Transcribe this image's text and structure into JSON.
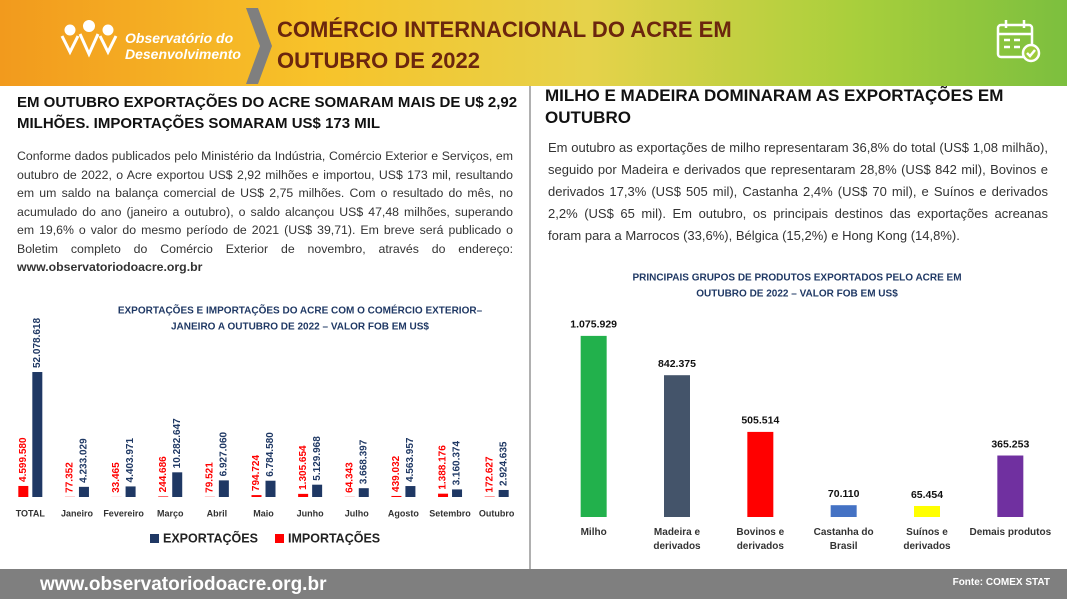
{
  "header": {
    "logo": [
      "Observatório do",
      "Desenvolvimento"
    ],
    "title": [
      "COMÉRCIO INTERNACIONAL DO ACRE EM",
      "OUTUBRO DE 2022"
    ]
  },
  "left": {
    "heading": "EM OUTUBRO EXPORTAÇÕES DO ACRE SOMARAM MAIS DE U$ 2,92 MILHÕES. IMPORTAÇÕES SOMARAM  US$ 173 MIL",
    "paragraph": "Conforme dados publicados pelo Ministério da Indústria, Comércio Exterior e Serviços, em outubro de 2022, o Acre exportou US$ 2,92 milhões e importou, US$ 173  mil, resultando em um saldo na balança comercial de US$ 2,75 milhões. Com o resultado do mês, no acumulado do ano (janeiro a outubro), o saldo alcançou US$ 47,48 milhões, superando em 19,6% o valor do mesmo período de 2021 (US$ 39,71).  Em breve será publicado o Boletim completo do Comércio Exterior de novembro, através do endereço: ",
    "link": "www.observatoriodoacre.org.br"
  },
  "right": {
    "heading": "MILHO E MADEIRA DOMINARAM AS EXPORTAÇÕES EM OUTUBRO",
    "paragraph": "Em outubro as exportações de milho representaram  36,8% do total (US$ 1,08 milhão), seguido por Madeira e derivados que representaram 28,8% (US$ 842 mil), Bovinos e derivados 17,3% (US$ 505 mil), Castanha 2,4% (US$ 70 mil),  e Suínos e derivados 2,2% (US$ 65 mil). Em outubro, os principais destinos das exportações acreanas foram para a Marrocos (33,6%), Bélgica (15,2%) e Hong Kong (14,8%)."
  },
  "chart_data": [
    {
      "type": "grouped-bar",
      "title": [
        "EXPORTAÇÕES E IMPORTAÇÕES  DO ACRE COM O COMÉRCIO EXTERIOR–",
        "JANEIRO A OUTUBRO DE 2022 – VALOR FOB EM US$"
      ],
      "categories": [
        "TOTAL",
        "Janeiro",
        "Fevereiro",
        "Março",
        "Abril",
        "Maio",
        "Junho",
        "Julho",
        "Agosto",
        "Setembro",
        "Outubro"
      ],
      "series": [
        {
          "name": "EXPORTAÇÕES",
          "color": "#1f3864",
          "values": [
            52078618,
            4233029,
            4403971,
            10282647,
            6927060,
            6784580,
            5129968,
            3668397,
            4563957,
            3160374,
            2924635
          ],
          "value_labels": [
            "52.078.618",
            "4.233.029",
            "4.403.971",
            "10.282.647",
            "6.927.060",
            "6.784.580",
            "5.129.968",
            "3.668.397",
            "4.563.957",
            "3.160.374",
            "2.924.635"
          ]
        },
        {
          "name": "IMPORTAÇÕES",
          "color": "#ff0000",
          "values": [
            4599580,
            77352,
            33465,
            244686,
            79521,
            794724,
            1305654,
            64343,
            439032,
            1388176,
            172627
          ],
          "value_labels": [
            "4.599.580",
            "77.352",
            "33.465",
            "244.686",
            "79.521",
            "794.724",
            "1.305.654",
            "64.343",
            "439.032",
            "1.388.176",
            "172.627"
          ]
        }
      ],
      "ylim": [
        0,
        60000000
      ]
    },
    {
      "type": "bar",
      "title": [
        "PRINCIPAIS GRUPOS DE PRODUTOS EXPORTADOS PELO ACRE EM",
        "OUTUBRO DE 2022 – VALOR FOB EM US$"
      ],
      "categories": [
        "Milho",
        "Madeira e derivados",
        "Bovinos e derivados",
        "Castanha do Brasil",
        "Suínos e derivados",
        "Demais produtos"
      ],
      "values": [
        1075929,
        842375,
        505514,
        70110,
        65454,
        365253
      ],
      "value_labels": [
        "1.075.929",
        "842.375",
        "505.514",
        "70.110",
        "65.454",
        "365.253"
      ],
      "colors": [
        "#22b14c",
        "#44546a",
        "#ff0000",
        "#4472c4",
        "#ffff00",
        "#7030a0"
      ],
      "ylim": [
        0,
        1200000
      ]
    }
  ],
  "footer": {
    "url": "www.observatoriodoacre.org.br",
    "source": "Fonte: COMEX STAT"
  }
}
